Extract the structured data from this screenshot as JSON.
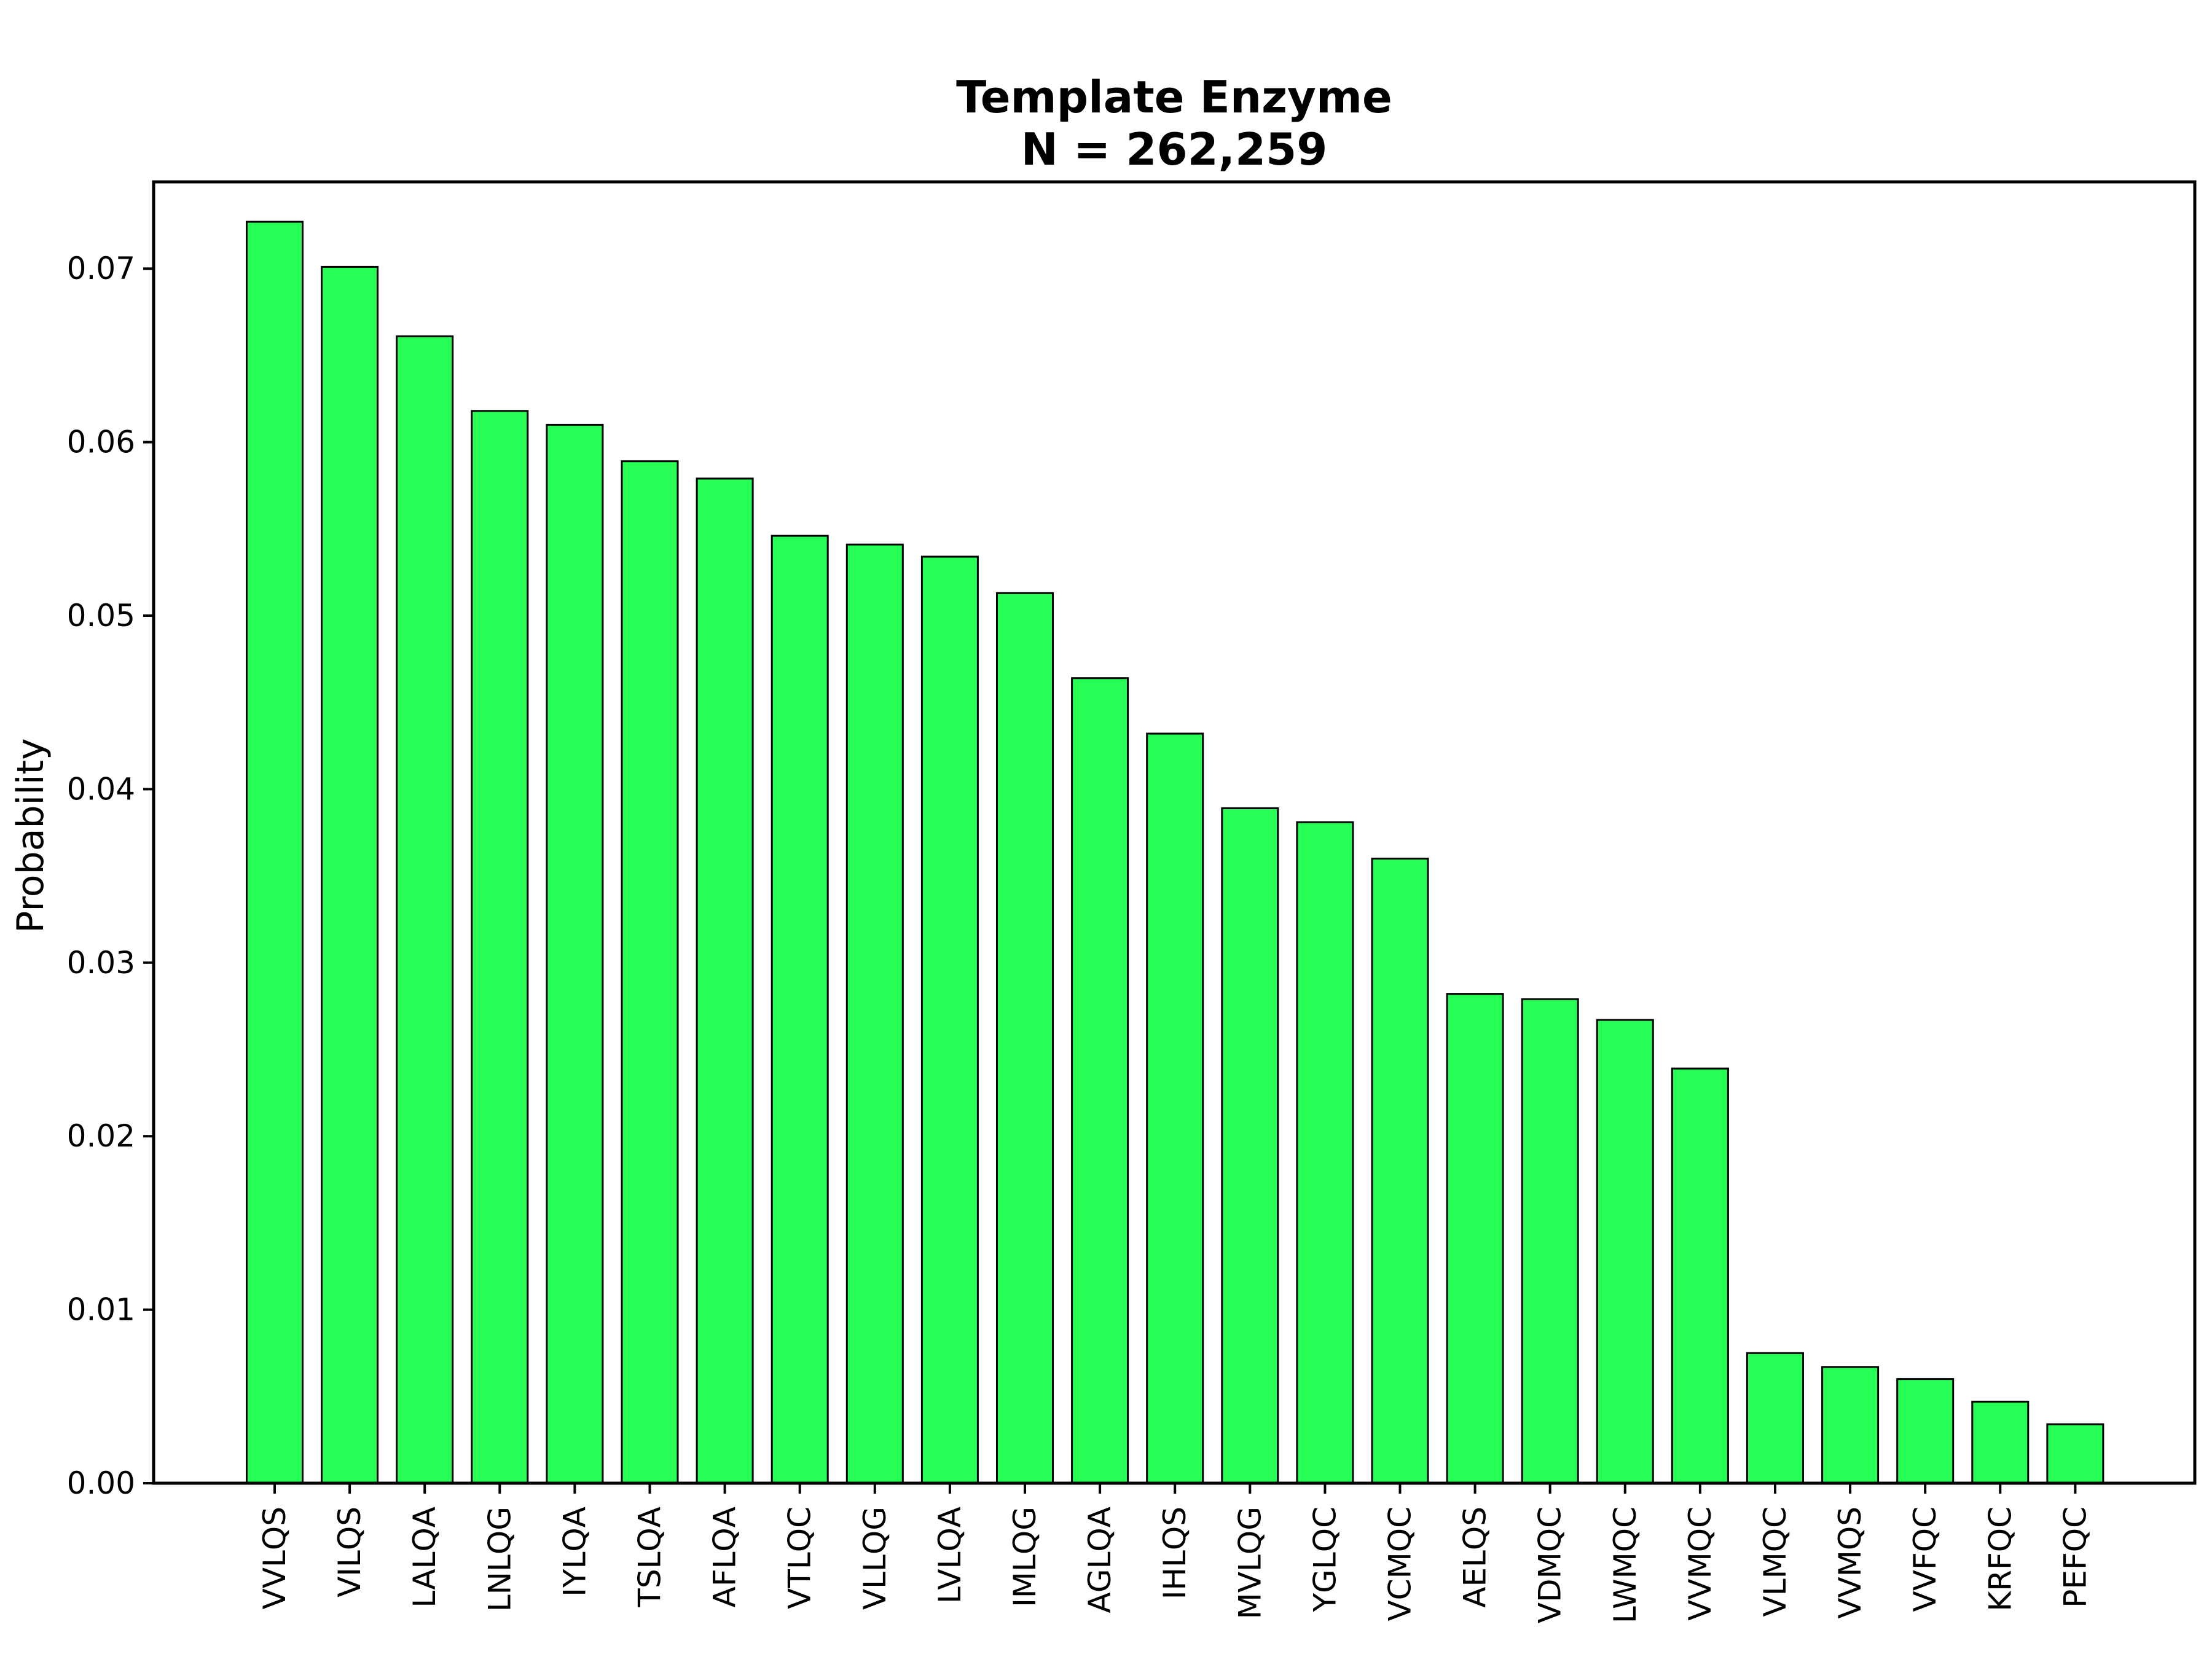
{
  "chart_data": {
    "type": "bar",
    "title": "Template Enzyme",
    "subtitle": "N = 262,259",
    "xlabel": "",
    "ylabel": "Probability",
    "ylim": [
      0,
      0.075
    ],
    "yticks": [
      0.0,
      0.01,
      0.02,
      0.03,
      0.04,
      0.05,
      0.06,
      0.07
    ],
    "ytick_labels": [
      "0.00",
      "0.01",
      "0.02",
      "0.03",
      "0.04",
      "0.05",
      "0.06",
      "0.07"
    ],
    "grid": false,
    "bar_color": "#26fe55",
    "edge_color": "#000000",
    "categories": [
      "VVLQS",
      "VILQS",
      "LALQA",
      "LNLQG",
      "IYLQA",
      "TSLQA",
      "AFLQA",
      "VTLQC",
      "VLLQG",
      "LVLQA",
      "IMLQG",
      "AGLQA",
      "IHLQS",
      "MVLQG",
      "YGLQC",
      "VCMQC",
      "AELQS",
      "VDMQC",
      "LWMQC",
      "VVMQC",
      "VLMQC",
      "VVMQS",
      "VVFQC",
      "KRFQC",
      "PEFQC"
    ],
    "values": [
      0.0727,
      0.0701,
      0.0661,
      0.0618,
      0.061,
      0.0589,
      0.0579,
      0.0546,
      0.0541,
      0.0534,
      0.0513,
      0.0464,
      0.0432,
      0.0389,
      0.0381,
      0.036,
      0.0282,
      0.0279,
      0.0267,
      0.0239,
      0.0075,
      0.0067,
      0.006,
      0.0047,
      0.0034
    ]
  }
}
